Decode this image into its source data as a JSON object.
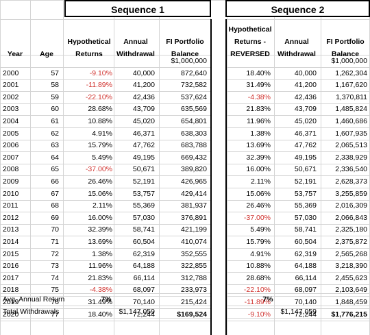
{
  "headers": {
    "seq1_title": "Sequence 1",
    "seq2_title": "Sequence 2",
    "year": "Year",
    "age": "Age",
    "hyp_returns": "Hypothetical Returns",
    "annual_withdrawal": "Annual Withdrawal",
    "fi_balance": "FI Portfolio Balance",
    "hyp_returns_reversed": "Hypothetical Returns - REVERSED",
    "annual_withdrawal2": "Annual Withdrawal",
    "fi_balance2": "FI Portfolio Balance"
  },
  "start_balance_1": "$1,000,000",
  "start_balance_2": "$1,000,000",
  "rows": [
    {
      "year": "2000",
      "age": "57",
      "r1": "-9.10%",
      "w1": "40,000",
      "b1": "872,640",
      "r2": "18.40%",
      "w2": "40,000",
      "b2": "1,262,304"
    },
    {
      "year": "2001",
      "age": "58",
      "r1": "-11.89%",
      "w1": "41,200",
      "b1": "732,582",
      "r2": "31.49%",
      "w2": "41,200",
      "b2": "1,167,620"
    },
    {
      "year": "2002",
      "age": "59",
      "r1": "-22.10%",
      "w1": "42,436",
      "b1": "537,624",
      "r2": "-4.38%",
      "w2": "42,436",
      "b2": "1,370,811"
    },
    {
      "year": "2003",
      "age": "60",
      "r1": "28.68%",
      "w1": "43,709",
      "b1": "635,569",
      "r2": "21.83%",
      "w2": "43,709",
      "b2": "1,485,824"
    },
    {
      "year": "2004",
      "age": "61",
      "r1": "10.88%",
      "w1": "45,020",
      "b1": "654,801",
      "r2": "11.96%",
      "w2": "45,020",
      "b2": "1,460,686"
    },
    {
      "year": "2005",
      "age": "62",
      "r1": "4.91%",
      "w1": "46,371",
      "b1": "638,303",
      "r2": "1.38%",
      "w2": "46,371",
      "b2": "1,607,935"
    },
    {
      "year": "2006",
      "age": "63",
      "r1": "15.79%",
      "w1": "47,762",
      "b1": "683,788",
      "r2": "13.69%",
      "w2": "47,762",
      "b2": "2,065,513"
    },
    {
      "year": "2007",
      "age": "64",
      "r1": "5.49%",
      "w1": "49,195",
      "b1": "669,432",
      "r2": "32.39%",
      "w2": "49,195",
      "b2": "2,338,929"
    },
    {
      "year": "2008",
      "age": "65",
      "r1": "-37.00%",
      "w1": "50,671",
      "b1": "389,820",
      "r2": "16.00%",
      "w2": "50,671",
      "b2": "2,336,540"
    },
    {
      "year": "2009",
      "age": "66",
      "r1": "26.46%",
      "w1": "52,191",
      "b1": "426,965",
      "r2": "2.11%",
      "w2": "52,191",
      "b2": "2,628,373"
    },
    {
      "year": "2010",
      "age": "67",
      "r1": "15.06%",
      "w1": "53,757",
      "b1": "429,414",
      "r2": "15.06%",
      "w2": "53,757",
      "b2": "3,255,859"
    },
    {
      "year": "2011",
      "age": "68",
      "r1": "2.11%",
      "w1": "55,369",
      "b1": "381,937",
      "r2": "26.46%",
      "w2": "55,369",
      "b2": "2,016,309"
    },
    {
      "year": "2012",
      "age": "69",
      "r1": "16.00%",
      "w1": "57,030",
      "b1": "376,891",
      "r2": "-37.00%",
      "w2": "57,030",
      "b2": "2,066,843"
    },
    {
      "year": "2013",
      "age": "70",
      "r1": "32.39%",
      "w1": "58,741",
      "b1": "421,199",
      "r2": "5.49%",
      "w2": "58,741",
      "b2": "2,325,180"
    },
    {
      "year": "2014",
      "age": "71",
      "r1": "13.69%",
      "w1": "60,504",
      "b1": "410,074",
      "r2": "15.79%",
      "w2": "60,504",
      "b2": "2,375,872"
    },
    {
      "year": "2015",
      "age": "72",
      "r1": "1.38%",
      "w1": "62,319",
      "b1": "352,555",
      "r2": "4.91%",
      "w2": "62,319",
      "b2": "2,565,268"
    },
    {
      "year": "2016",
      "age": "73",
      "r1": "11.96%",
      "w1": "64,188",
      "b1": "322,855",
      "r2": "10.88%",
      "w2": "64,188",
      "b2": "3,218,390"
    },
    {
      "year": "2017",
      "age": "74",
      "r1": "21.83%",
      "w1": "66,114",
      "b1": "312,788",
      "r2": "28.68%",
      "w2": "66,114",
      "b2": "2,455,623"
    },
    {
      "year": "2018",
      "age": "75",
      "r1": "-4.38%",
      "w1": "68,097",
      "b1": "233,973",
      "r2": "-22.10%",
      "w2": "68,097",
      "b2": "2,103,649"
    },
    {
      "year": "2019",
      "age": "76",
      "r1": "31.49%",
      "w1": "70,140",
      "b1": "215,424",
      "r2": "-11.89%",
      "w2": "70,140",
      "b2": "1,848,459"
    },
    {
      "year": "2020",
      "age": "77",
      "r1": "18.40%",
      "w1": "72,244",
      "b1": "$169,524",
      "r2": "-9.10%",
      "w2": "72,244",
      "b2": "$1,776,215"
    }
  ],
  "summary": {
    "avg_label": "Avg. Annual Return",
    "avg_1": "7%",
    "avg_2": "7%",
    "total_label": "Total Withdrawals",
    "total_1": "$1,147,059",
    "total_2": "$1,147,059"
  }
}
